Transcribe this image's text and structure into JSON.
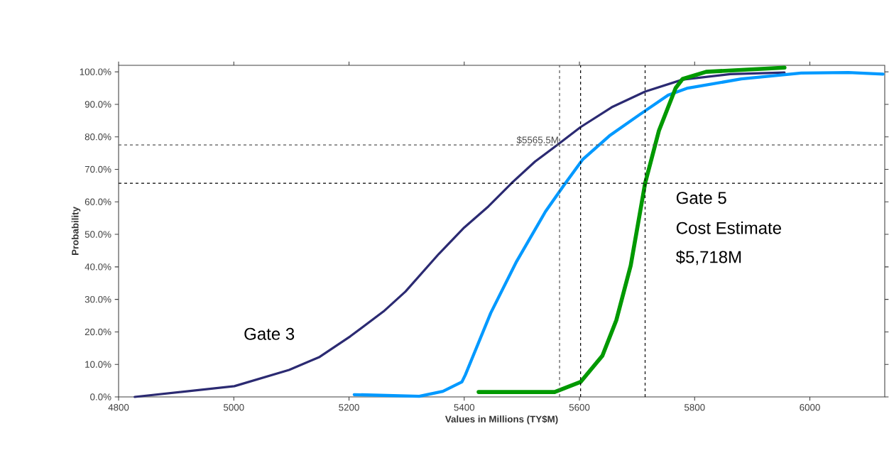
{
  "chart_data": {
    "type": "line",
    "xlabel": "Values in Millions (TY$M)",
    "ylabel": "Probability",
    "xlim": [
      4800,
      6130
    ],
    "ylim": [
      0,
      102
    ],
    "xticks": [
      4800,
      5000,
      5200,
      5400,
      5600,
      5800,
      6000
    ],
    "yticks": [
      {
        "value": 0,
        "label": "0.0%"
      },
      {
        "value": 10,
        "label": "10.0%"
      },
      {
        "value": 20,
        "label": "20.0%"
      },
      {
        "value": 30,
        "label": "30.0%"
      },
      {
        "value": 40,
        "label": "40.0%"
      },
      {
        "value": 50,
        "label": "50.0%"
      },
      {
        "value": 60,
        "label": "60.0%"
      },
      {
        "value": 70,
        "label": "70.0%"
      },
      {
        "value": 80,
        "label": "80.0%"
      },
      {
        "value": 90,
        "label": "90.0%"
      },
      {
        "value": 100,
        "label": "100.0%"
      }
    ],
    "marker": "none",
    "line_style": "solid",
    "series": [
      {
        "color": "#2b2a72",
        "x": [
          4828,
          5001,
          5096,
          5149,
          5202,
          5260,
          5298,
          5356,
          5400,
          5442,
          5483,
          5523,
          5563,
          5602,
          5656,
          5714,
          5779,
          5862,
          5956
        ],
        "values": [
          0,
          3.3,
          8.3,
          12.3,
          18.6,
          26.3,
          32.4,
          44,
          52.1,
          58.6,
          65.9,
          72.4,
          77.7,
          83,
          89.1,
          93.9,
          97.6,
          99.3,
          99.8
        ]
      },
      {
        "color": "#0099ff",
        "x": [
          5209,
          5322,
          5363,
          5396,
          5402,
          5446,
          5491,
          5541,
          5573,
          5606,
          5652,
          5705,
          5754,
          5788,
          5881,
          5985,
          6067,
          6127
        ],
        "values": [
          0.7,
          0.2,
          1.7,
          4.6,
          6.8,
          25.8,
          41.7,
          57,
          65.1,
          73.1,
          80.3,
          86.9,
          92.8,
          95,
          97.8,
          99.6,
          99.8,
          99.3
        ]
      },
      {
        "color": "#009900",
        "x": [
          5425,
          5557,
          5602,
          5640,
          5664,
          5689,
          5714,
          5738,
          5767,
          5779,
          5820,
          5956
        ],
        "values": [
          1.5,
          1.5,
          4.6,
          12.7,
          23.6,
          40.4,
          65.7,
          81.9,
          95,
          97.8,
          100,
          101.3
        ]
      }
    ],
    "ref_lines": [
      {
        "axis": "y",
        "value": 77.5,
        "label": "$5565.5M",
        "color": "#555555",
        "line_style": "dashed"
      },
      {
        "axis": "x",
        "value": 5565.5,
        "color": "#555555",
        "line_style": "dashed"
      },
      {
        "axis": "y",
        "value": 65.7,
        "color": "#000000",
        "line_style": "dashed"
      },
      {
        "axis": "x",
        "value": 5602,
        "color": "#000000",
        "line_style": "dashed"
      },
      {
        "axis": "x",
        "value": 5714,
        "color": "#000000",
        "line_style": "dashed"
      }
    ],
    "annotations": [
      "Gate 3",
      "Gate 5",
      "Cost Estimate",
      "$5,718M"
    ]
  }
}
